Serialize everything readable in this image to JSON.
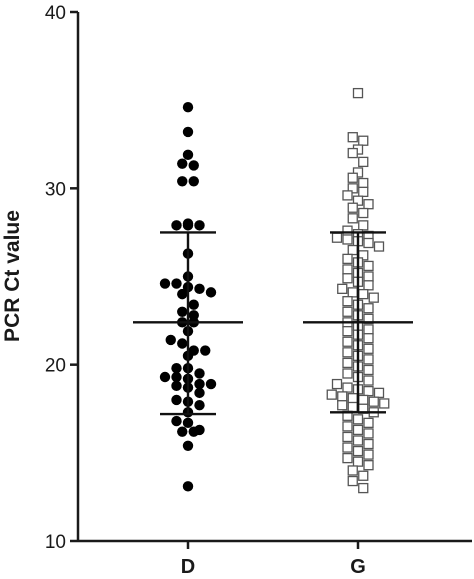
{
  "chart_data": {
    "type": "scatter",
    "subtype": "dot-plot-with-mean-sd",
    "title": "",
    "xlabel": "",
    "ylabel": "PCR Ct value",
    "ylim": [
      10,
      40
    ],
    "yticks": [
      10,
      20,
      30,
      40
    ],
    "grid": false,
    "legend": "none",
    "categories": [
      "D",
      "G"
    ],
    "series": [
      {
        "category": "D",
        "marker": "filled-circle",
        "color": "#000000",
        "mean": 22.4,
        "sd_low": 17.2,
        "sd_high": 27.5,
        "values": [
          34.6,
          33.2,
          31.9,
          31.4,
          31.3,
          30.4,
          30.4,
          28.0,
          27.9,
          27.9,
          27.9,
          26.3,
          25.0,
          24.6,
          24.6,
          24.4,
          24.3,
          24.1,
          24.0,
          23.4,
          23.0,
          22.8,
          22.4,
          22.4,
          21.9,
          21.4,
          21.2,
          20.8,
          20.8,
          20.5,
          19.8,
          19.8,
          19.5,
          19.3,
          19.3,
          19.2,
          18.9,
          18.9,
          18.8,
          18.7,
          18.4,
          18.0,
          17.9,
          17.7,
          17.3,
          16.8,
          16.7,
          16.3,
          16.2,
          16.2,
          15.4,
          13.1
        ]
      },
      {
        "category": "G",
        "marker": "open-square",
        "color": "#555555",
        "mean": 22.4,
        "sd_low": 17.3,
        "sd_high": 27.5,
        "values": [
          35.4,
          32.9,
          32.7,
          32.2,
          32.0,
          31.5,
          30.9,
          30.6,
          30.3,
          30.0,
          29.8,
          29.6,
          29.3,
          29.1,
          28.9,
          28.6,
          28.3,
          27.9,
          27.6,
          27.4,
          27.3,
          27.2,
          27.1,
          27.0,
          26.9,
          26.7,
          26.5,
          26.2,
          26.0,
          25.8,
          25.6,
          25.4,
          25.2,
          25.0,
          24.9,
          24.7,
          24.5,
          24.3,
          24.1,
          24.0,
          23.8,
          23.6,
          23.4,
          23.2,
          23.0,
          22.8,
          22.6,
          22.4,
          22.2,
          22.0,
          21.9,
          21.7,
          21.5,
          21.3,
          21.1,
          20.9,
          20.7,
          20.5,
          20.3,
          20.1,
          19.9,
          19.7,
          19.5,
          19.3,
          19.1,
          18.9,
          18.7,
          18.6,
          18.5,
          18.4,
          18.3,
          18.2,
          18.1,
          18.0,
          17.9,
          17.8,
          17.7,
          17.6,
          17.5,
          17.3,
          17.1,
          16.9,
          16.7,
          16.5,
          16.3,
          16.1,
          15.9,
          15.7,
          15.5,
          15.3,
          15.1,
          14.9,
          14.7,
          14.5,
          14.3,
          14.0,
          13.7,
          13.4,
          13.0
        ]
      }
    ]
  }
}
